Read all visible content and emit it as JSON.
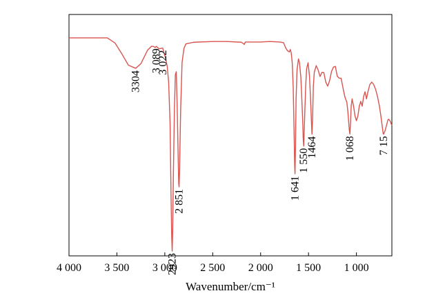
{
  "chart_data": {
    "type": "line",
    "title": "",
    "xlabel": "Wavenumber/cm⁻¹",
    "ylabel": "",
    "x_reversed": true,
    "xlim": [
      4000,
      630
    ],
    "ylim": [
      0,
      100
    ],
    "y_ticks_shown": false,
    "grid": false,
    "legend": "none",
    "line_color": "#d9534f",
    "x_ticks": [
      {
        "value": 4000,
        "label": "4 000"
      },
      {
        "value": 3500,
        "label": "3 500"
      },
      {
        "value": 3000,
        "label": "3 000"
      },
      {
        "value": 2500,
        "label": "2 500"
      },
      {
        "value": 2000,
        "label": "2 000"
      },
      {
        "value": 1500,
        "label": "1 500"
      },
      {
        "value": 1000,
        "label": "1 000"
      }
    ],
    "series": [
      {
        "x": [
          4000,
          3600,
          3520,
          3450,
          3380,
          3304,
          3250,
          3180,
          3140,
          3120,
          3100,
          3089,
          3060,
          3022,
          3005,
          2990,
          2975,
          2960,
          2945,
          2935,
          2928,
          2923,
          2918,
          2910,
          2900,
          2890,
          2880,
          2870,
          2860,
          2855,
          2851,
          2846,
          2835,
          2820,
          2800,
          2780,
          2700,
          2500,
          2350,
          2200,
          2170,
          2160,
          2150,
          2000,
          1900,
          1800,
          1760,
          1740,
          1720,
          1700,
          1690,
          1680,
          1670,
          1660,
          1650,
          1645,
          1641,
          1636,
          1630,
          1620,
          1605,
          1595,
          1580,
          1570,
          1560,
          1555,
          1550,
          1545,
          1530,
          1520,
          1505,
          1490,
          1480,
          1470,
          1464,
          1458,
          1450,
          1440,
          1420,
          1400,
          1380,
          1360,
          1340,
          1320,
          1300,
          1280,
          1260,
          1240,
          1220,
          1200,
          1180,
          1160,
          1140,
          1120,
          1100,
          1090,
          1080,
          1074,
          1068,
          1062,
          1055,
          1045,
          1030,
          1015,
          1000,
          985,
          970,
          955,
          940,
          925,
          910,
          895,
          880,
          860,
          840,
          820,
          800,
          780,
          760,
          745,
          735,
          725,
          720,
          715,
          710,
          700,
          690,
          680,
          670,
          660,
          650,
          640,
          630
        ],
        "y": [
          90.3,
          90.3,
          88.2,
          83.8,
          79.0,
          77.7,
          79.6,
          85.2,
          86.8,
          86.8,
          86.3,
          86.8,
          85.8,
          86.1,
          83.6,
          81.6,
          78.6,
          72.0,
          55.0,
          25.0,
          8.0,
          2.0,
          10.0,
          35.0,
          60.0,
          75.0,
          76.3,
          60.0,
          40.0,
          30.0,
          28.6,
          35.0,
          60.0,
          80.0,
          86.0,
          87.8,
          88.5,
          88.8,
          88.8,
          88.5,
          87.6,
          88.6,
          88.6,
          88.6,
          88.8,
          88.6,
          88.3,
          86.3,
          85.0,
          84.5,
          85.5,
          84.0,
          80.0,
          70.0,
          50.0,
          38.0,
          34.0,
          45.0,
          65.0,
          77.0,
          81.6,
          80.2,
          74.0,
          65.0,
          55.0,
          48.0,
          45.5,
          52.0,
          70.0,
          77.5,
          80.0,
          74.5,
          66.0,
          56.0,
          50.4,
          56.0,
          70.0,
          76.0,
          78.8,
          77.0,
          74.3,
          76.0,
          75.9,
          72.0,
          70.3,
          72.6,
          76.4,
          78.2,
          78.5,
          74.4,
          73.6,
          73.6,
          69.5,
          65.8,
          63.6,
          60.0,
          55.0,
          52.0,
          50.5,
          55.0,
          62.0,
          65.0,
          62.0,
          58.0,
          56.0,
          58.0,
          62.0,
          64.0,
          62.0,
          66.0,
          68.0,
          65.0,
          68.0,
          71.0,
          72.0,
          71.0,
          69.0,
          66.0,
          62.0,
          58.0,
          55.0,
          52.0,
          50.5,
          50.5,
          51.0,
          52.0,
          53.5,
          55.0,
          56.5,
          56.5,
          56.0,
          55.0,
          54.0
        ]
      }
    ],
    "annotations": [
      {
        "label": "3304",
        "x": 3304
      },
      {
        "label": "3 089",
        "x": 3089
      },
      {
        "label": "3 022",
        "x": 3022
      },
      {
        "label": "2923",
        "x": 2923
      },
      {
        "label": "2 851",
        "x": 2851
      },
      {
        "label": "1 641",
        "x": 1641
      },
      {
        "label": "1 550",
        "x": 1550
      },
      {
        "label": "1464",
        "x": 1464
      },
      {
        "label": "1 068",
        "x": 1068
      },
      {
        "label": "7 15",
        "x": 715
      }
    ]
  }
}
